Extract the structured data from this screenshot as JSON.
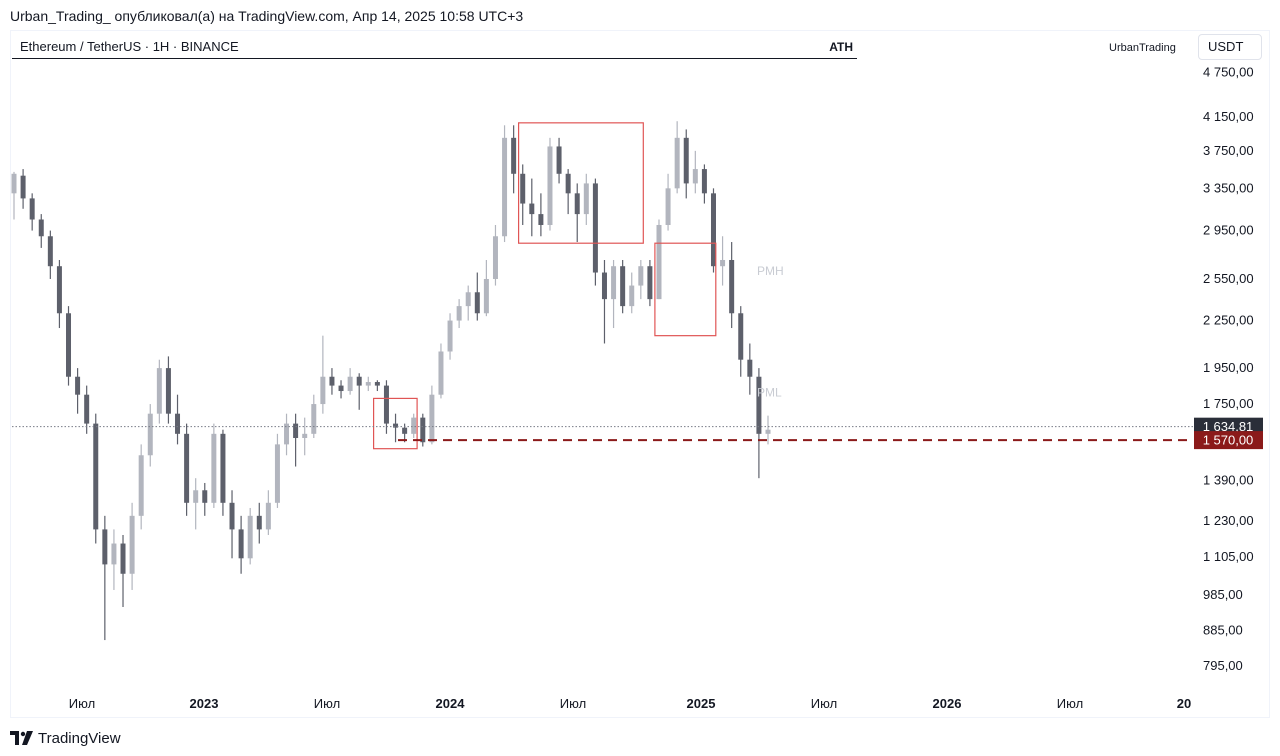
{
  "header": {
    "caption": "Urban_Trading_ опубликовал(а) на TradingView.com, Апр 14, 2025 10:58 UTC+3"
  },
  "symbol": {
    "title": "Ethereum / TetherUS · 1H · BINANCE",
    "ath_label": "ATH",
    "author": "UrbanTrading",
    "currency": "USDT"
  },
  "footer": {
    "logo_text": "TradingView"
  },
  "colors": {
    "bear": "#5d606b",
    "bull": "#b2b5be",
    "box": "#e05555",
    "support": "#8b1a1a",
    "price_tag": "#2a2e39"
  },
  "chart_data": {
    "type": "candlestick",
    "title": "Ethereum / TetherUS · 1H · BINANCE",
    "y_scale": "log",
    "ylim": [
      740,
      4900
    ],
    "price_axis_labels": [
      "4 750,00",
      "4 150,00",
      "3 750,00",
      "3 350,00",
      "2 950,00",
      "2 550,00",
      "2 250,00",
      "1 950,00",
      "1 750,00",
      "1 390,00",
      "1 230,00",
      "1 105,00",
      "985,00",
      "885,00",
      "795,00"
    ],
    "time_axis_labels": [
      {
        "label": "Июл",
        "bold": false
      },
      {
        "label": "2023",
        "bold": true
      },
      {
        "label": "Июл",
        "bold": false
      },
      {
        "label": "2024",
        "bold": true
      },
      {
        "label": "Июл",
        "bold": false
      },
      {
        "label": "2025",
        "bold": true
      },
      {
        "label": "Июл",
        "bold": false
      },
      {
        "label": "2026",
        "bold": true
      },
      {
        "label": "Июл",
        "bold": false
      },
      {
        "label": "20",
        "bold": true
      }
    ],
    "current_price": {
      "value": 1634.81,
      "label": "1 634,81"
    },
    "support_level": {
      "value": 1570,
      "label": "1 570,00"
    },
    "annotations": [
      {
        "text": "PMH",
        "price": 2580
      },
      {
        "text": "PML",
        "price": 1790
      }
    ],
    "boxes": [
      {
        "name": "box-2023-range",
        "x0": 1.24,
        "x1": 1.39,
        "y_top": 1780,
        "y_bottom": 1530
      },
      {
        "name": "box-2024-top",
        "x0": 1.74,
        "x1": 2.17,
        "y_top": 4080,
        "y_bottom": 2840
      },
      {
        "name": "box-2024-mid",
        "x0": 2.21,
        "x1": 2.42,
        "y_top": 2840,
        "y_bottom": 2150
      }
    ],
    "candles_note": "weekly-style OHLC sampled from the visible series; t is years since the first visible tick period",
    "candles": [
      [
        3300,
        3500,
        3520,
        3050
      ],
      [
        3480,
        3250,
        3550,
        3150
      ],
      [
        3250,
        3050,
        3300,
        2950
      ],
      [
        3050,
        2900,
        3100,
        2800
      ],
      [
        2900,
        2650,
        2950,
        2550
      ],
      [
        2650,
        2300,
        2700,
        2200
      ],
      [
        2300,
        1900,
        2350,
        1850
      ],
      [
        1900,
        1800,
        1950,
        1700
      ],
      [
        1800,
        1650,
        1850,
        1600
      ],
      [
        1650,
        1200,
        1700,
        1150
      ],
      [
        1200,
        1080,
        1250,
        860
      ],
      [
        1080,
        1150,
        1200,
        1000
      ],
      [
        1150,
        1050,
        1180,
        950
      ],
      [
        1050,
        1250,
        1300,
        1000
      ],
      [
        1250,
        1500,
        1550,
        1200
      ],
      [
        1500,
        1700,
        1750,
        1450
      ],
      [
        1700,
        1950,
        2000,
        1650
      ],
      [
        1950,
        1700,
        2020,
        1650
      ],
      [
        1700,
        1600,
        1800,
        1550
      ],
      [
        1600,
        1300,
        1650,
        1250
      ],
      [
        1300,
        1350,
        1400,
        1200
      ],
      [
        1350,
        1300,
        1380,
        1250
      ],
      [
        1300,
        1600,
        1650,
        1280
      ],
      [
        1600,
        1300,
        1620,
        1250
      ],
      [
        1300,
        1200,
        1350,
        1100
      ],
      [
        1200,
        1100,
        1250,
        1050
      ],
      [
        1100,
        1250,
        1280,
        1080
      ],
      [
        1250,
        1200,
        1300,
        1150
      ],
      [
        1200,
        1300,
        1350,
        1180
      ],
      [
        1300,
        1550,
        1600,
        1280
      ],
      [
        1550,
        1650,
        1700,
        1500
      ],
      [
        1650,
        1580,
        1700,
        1450
      ],
      [
        1580,
        1600,
        1680,
        1500
      ],
      [
        1600,
        1750,
        1800,
        1580
      ],
      [
        1750,
        1900,
        2150,
        1700
      ],
      [
        1900,
        1850,
        1950,
        1800
      ],
      [
        1850,
        1820,
        1880,
        1780
      ],
      [
        1820,
        1900,
        1950,
        1800
      ],
      [
        1900,
        1850,
        1920,
        1720
      ],
      [
        1850,
        1870,
        1900,
        1820
      ],
      [
        1870,
        1850,
        1880,
        1820
      ],
      [
        1850,
        1650,
        1880,
        1600
      ],
      [
        1650,
        1630,
        1700,
        1560
      ],
      [
        1630,
        1600,
        1650,
        1560
      ],
      [
        1600,
        1680,
        1700,
        1580
      ],
      [
        1680,
        1560,
        1700,
        1540
      ],
      [
        1560,
        1800,
        1850,
        1550
      ],
      [
        1800,
        2050,
        2100,
        1780
      ],
      [
        2050,
        2250,
        2300,
        2000
      ],
      [
        2250,
        2350,
        2400,
        2200
      ],
      [
        2350,
        2450,
        2500,
        2250
      ],
      [
        2450,
        2300,
        2600,
        2250
      ],
      [
        2300,
        2550,
        2700,
        2280
      ],
      [
        2550,
        2900,
        3000,
        2500
      ],
      [
        2900,
        3900,
        4050,
        2850
      ],
      [
        3900,
        3500,
        4050,
        3300
      ],
      [
        3500,
        3200,
        3600,
        3000
      ],
      [
        3200,
        3100,
        3450,
        2900
      ],
      [
        3100,
        3000,
        3300,
        2900
      ],
      [
        3000,
        3800,
        3900,
        2950
      ],
      [
        3800,
        3500,
        3900,
        3400
      ],
      [
        3500,
        3300,
        3550,
        3100
      ],
      [
        3300,
        3100,
        3400,
        2850
      ],
      [
        3100,
        3400,
        3500,
        3000
      ],
      [
        3400,
        2600,
        3450,
        2500
      ],
      [
        2600,
        2400,
        2700,
        2100
      ],
      [
        2400,
        2650,
        2700,
        2200
      ],
      [
        2650,
        2350,
        2700,
        2300
      ],
      [
        2350,
        2500,
        2600,
        2300
      ],
      [
        2500,
        2650,
        2700,
        2400
      ],
      [
        2650,
        2400,
        2700,
        2350
      ],
      [
        2400,
        3000,
        3050,
        2400
      ],
      [
        3000,
        3350,
        3500,
        2950
      ],
      [
        3350,
        3900,
        4100,
        3300
      ],
      [
        3900,
        3400,
        4000,
        3250
      ],
      [
        3400,
        3550,
        3750,
        3300
      ],
      [
        3550,
        3300,
        3600,
        3200
      ],
      [
        3300,
        2650,
        3350,
        2600
      ],
      [
        2650,
        2700,
        2900,
        2500
      ],
      [
        2700,
        2300,
        2850,
        2200
      ],
      [
        2300,
        2000,
        2350,
        1900
      ],
      [
        2000,
        1900,
        2100,
        1800
      ],
      [
        1900,
        1600,
        1950,
        1400
      ],
      [
        1600,
        1620,
        1690,
        1550
      ]
    ]
  }
}
